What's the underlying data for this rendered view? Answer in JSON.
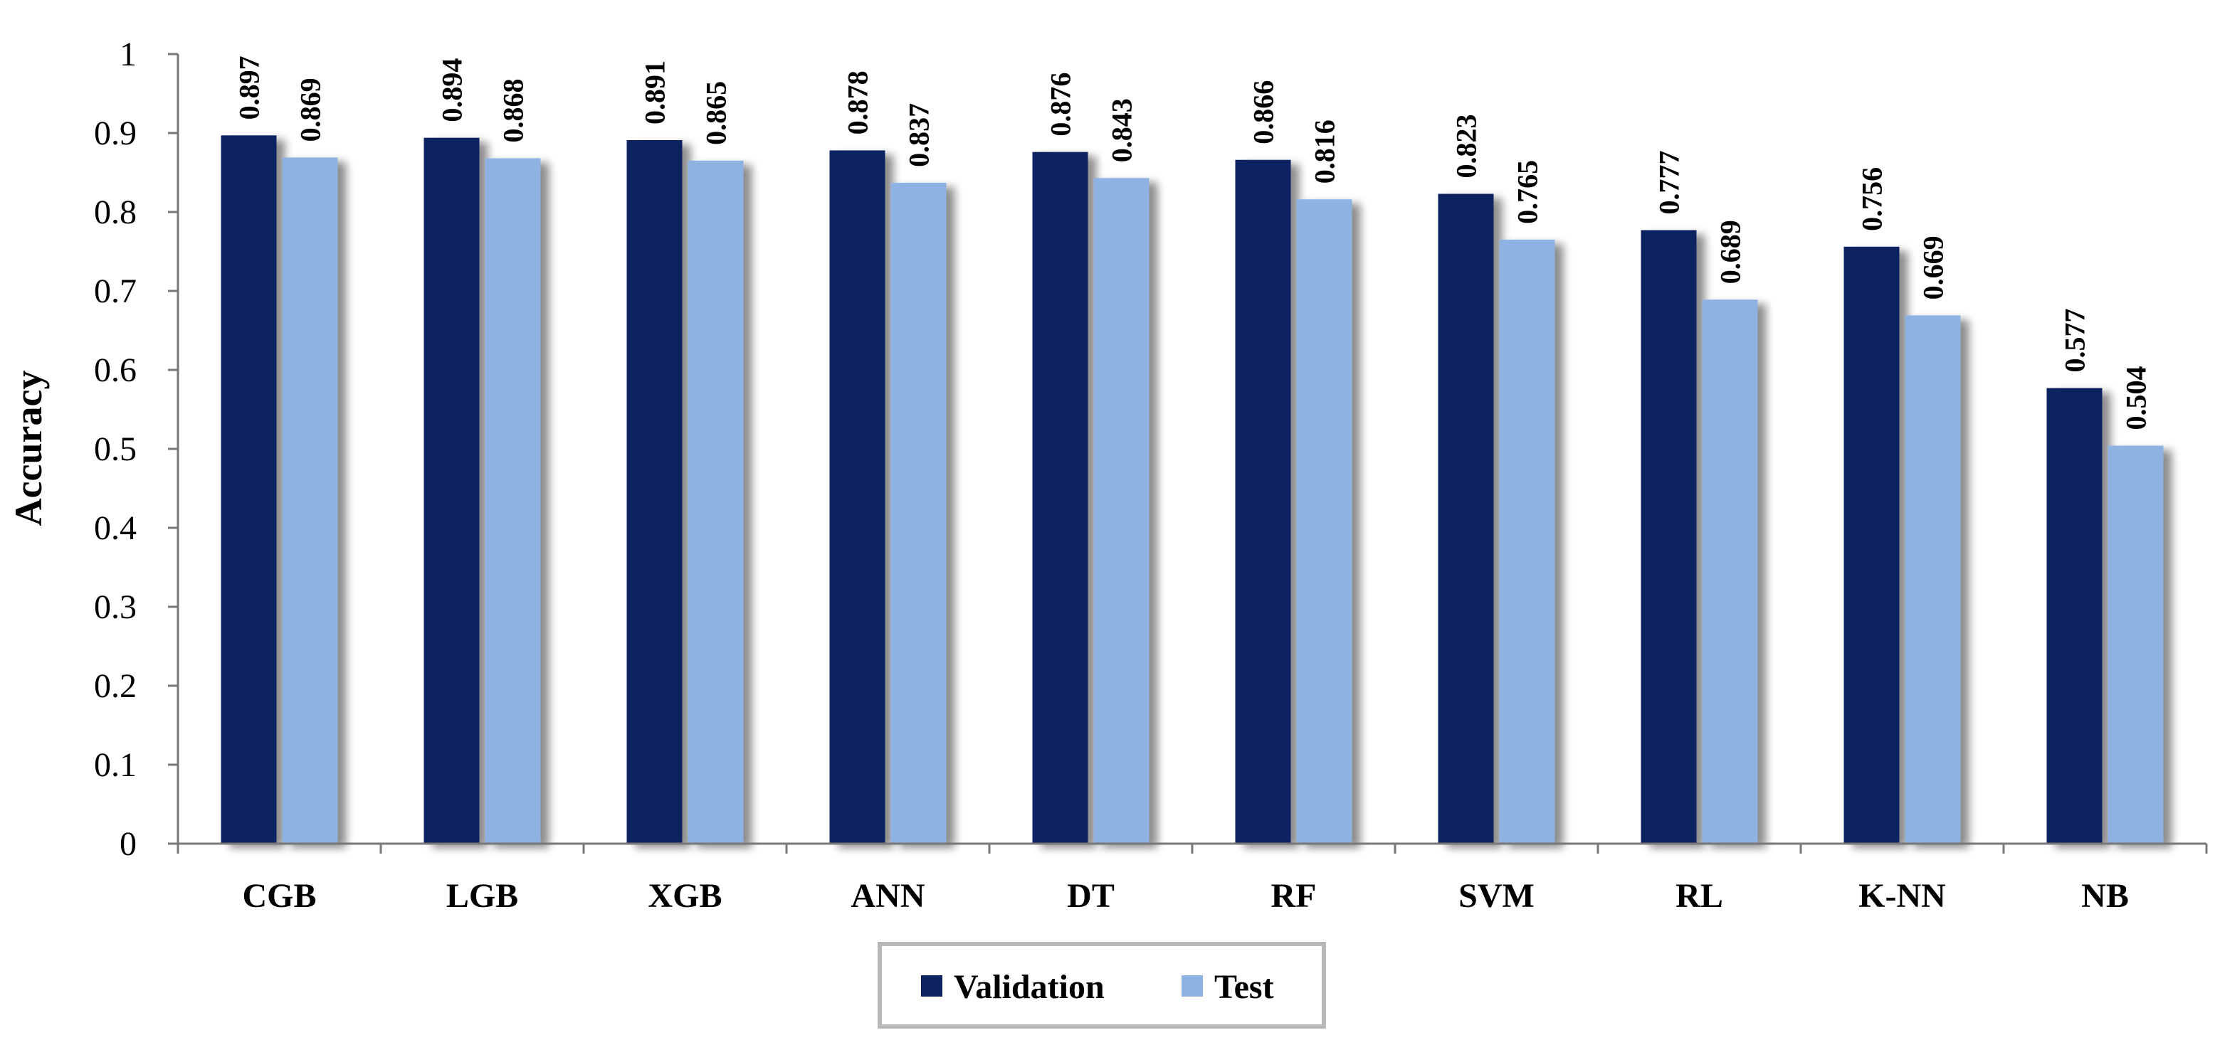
{
  "chart_data": {
    "type": "bar",
    "title": "",
    "xlabel": "",
    "ylabel": "Accuracy",
    "ylim": [
      0,
      1
    ],
    "yticks": [
      "0",
      "0.1",
      "0.2",
      "0.3",
      "0.4",
      "0.5",
      "0.6",
      "0.7",
      "0.8",
      "0.9",
      "1"
    ],
    "grid": false,
    "legend_position": "bottom-center",
    "categories": [
      "CGB",
      "LGB",
      "XGB",
      "ANN",
      "DT",
      "RF",
      "SVM",
      "RL",
      "K-NN",
      "NB"
    ],
    "series": [
      {
        "name": "Validation",
        "color": "#0d2360",
        "values": [
          0.897,
          0.894,
          0.891,
          0.878,
          0.876,
          0.866,
          0.823,
          0.777,
          0.756,
          0.577
        ],
        "labels": [
          "0.897",
          "0.894",
          "0.891",
          "0.878",
          "0.876",
          "0.866",
          "0.823",
          "0.777",
          "0.756",
          "0.577"
        ]
      },
      {
        "name": "Test",
        "color": "#8eb3e3",
        "values": [
          0.869,
          0.868,
          0.865,
          0.837,
          0.843,
          0.816,
          0.765,
          0.689,
          0.669,
          0.504
        ],
        "labels": [
          "0.869",
          "0.868",
          "0.865",
          "0.837",
          "0.843",
          "0.816",
          "0.765",
          "0.689",
          "0.669",
          "0.504"
        ]
      }
    ]
  }
}
